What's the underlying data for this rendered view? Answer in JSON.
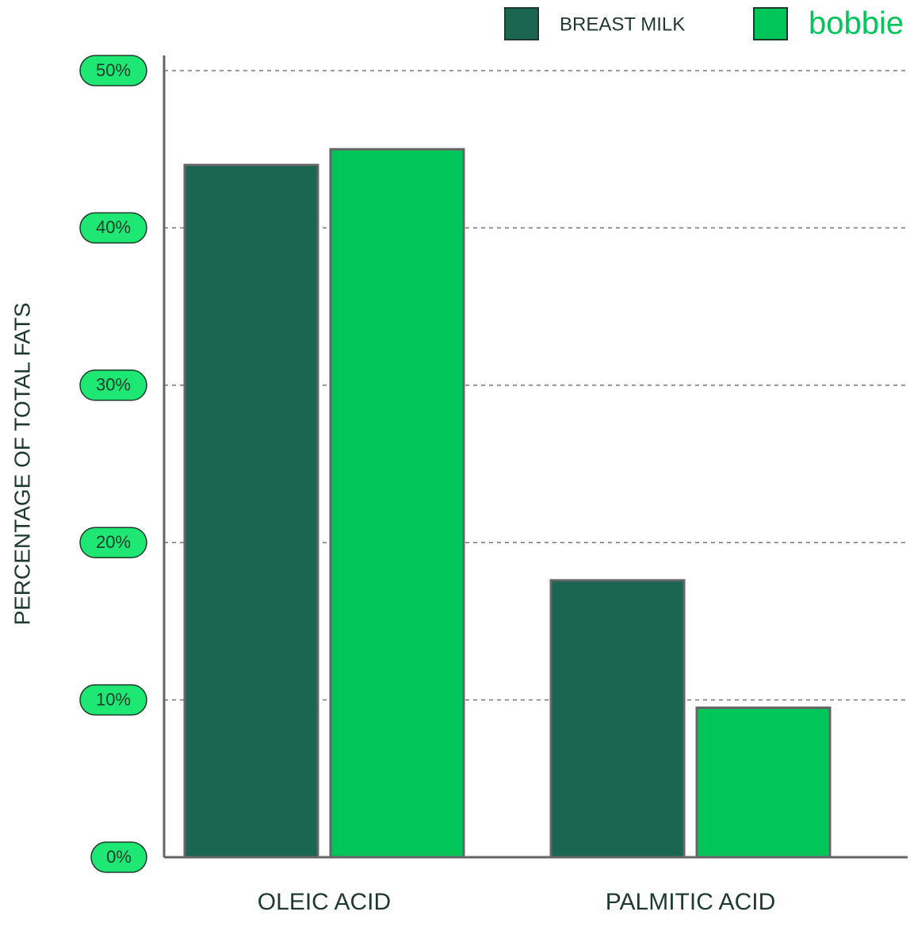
{
  "chart_data": {
    "type": "bar",
    "y_label": "PERCENTAGE OF TOTAL FATS",
    "categories": [
      "OLEIC ACID",
      "PALMITIC ACID"
    ],
    "series": [
      {
        "name": "BREAST MILK",
        "color": "#1b6650",
        "values": [
          44,
          17.6
        ]
      },
      {
        "name": "bobbie",
        "color": "#00c65a",
        "values": [
          45,
          9.5
        ]
      }
    ],
    "ylim": [
      0,
      50
    ],
    "yticks": [
      {
        "value": 0,
        "label": "0%"
      },
      {
        "value": 10,
        "label": "10%"
      },
      {
        "value": 20,
        "label": "20%"
      },
      {
        "value": 30,
        "label": "30%"
      },
      {
        "value": 40,
        "label": "40%"
      },
      {
        "value": 50,
        "label": "50%"
      }
    ],
    "grid": true
  }
}
